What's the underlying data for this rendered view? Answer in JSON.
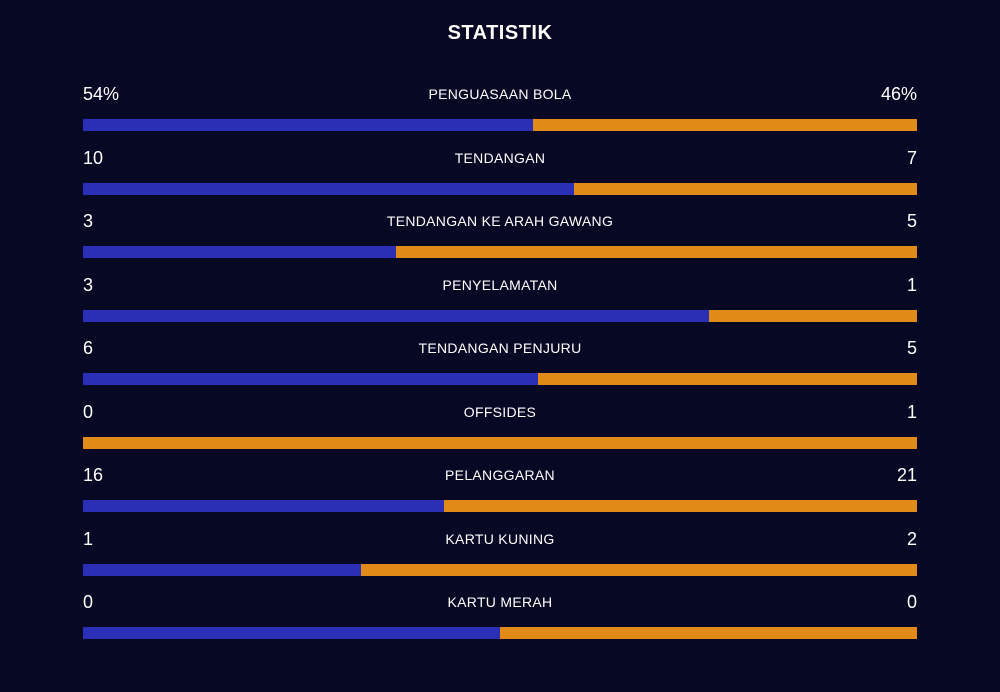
{
  "title": "STATISTIK",
  "colors": {
    "background": "#070823",
    "home": "#2b2fb6",
    "away": "#e18a17",
    "text": "#ffffff"
  },
  "chart_data": {
    "type": "bar",
    "orientation": "horizontal-stacked-comparison",
    "series": [
      {
        "name": "home"
      },
      {
        "name": "away"
      }
    ],
    "stats": [
      {
        "label": "PENGUASAAN BOLA",
        "home": "54%",
        "away": "46%",
        "home_value": 54,
        "away_value": 46
      },
      {
        "label": "TENDANGAN",
        "home": "10",
        "away": "7",
        "home_value": 10,
        "away_value": 7
      },
      {
        "label": "TENDANGAN KE ARAH GAWANG",
        "home": "3",
        "away": "5",
        "home_value": 3,
        "away_value": 5
      },
      {
        "label": "PENYELAMATAN",
        "home": "3",
        "away": "1",
        "home_value": 3,
        "away_value": 1
      },
      {
        "label": "TENDANGAN PENJURU",
        "home": "6",
        "away": "5",
        "home_value": 6,
        "away_value": 5
      },
      {
        "label": "OFFSIDES",
        "home": "0",
        "away": "1",
        "home_value": 0,
        "away_value": 1
      },
      {
        "label": "PELANGGARAN",
        "home": "16",
        "away": "21",
        "home_value": 16,
        "away_value": 21
      },
      {
        "label": "KARTU KUNING",
        "home": "1",
        "away": "2",
        "home_value": 1,
        "away_value": 2
      },
      {
        "label": "KARTU MERAH",
        "home": "0",
        "away": "0",
        "home_value": 0,
        "away_value": 0
      }
    ]
  }
}
